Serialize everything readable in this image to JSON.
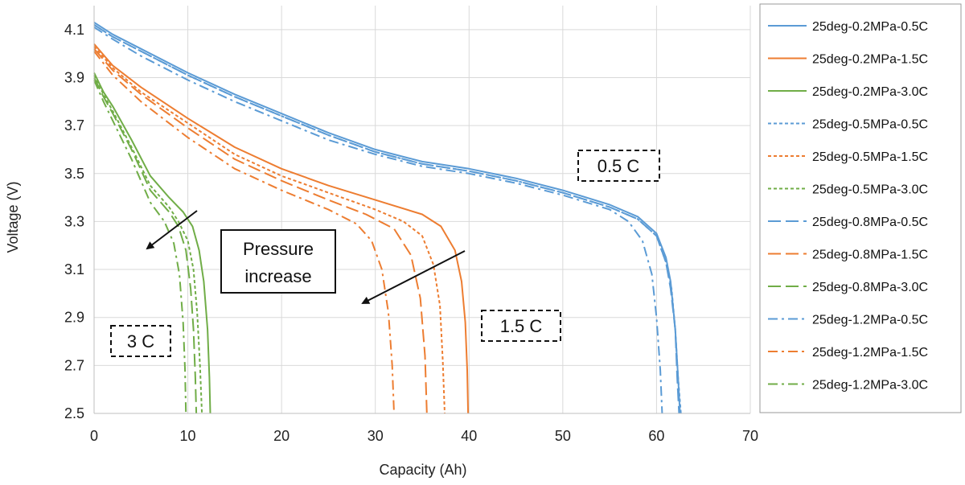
{
  "chart_data": {
    "type": "line",
    "title": "",
    "xlabel": "Capacity (Ah)",
    "ylabel": "Voltage (V)",
    "xlim": [
      0,
      70
    ],
    "ylim": [
      2.5,
      4.2
    ],
    "xticks": [
      0,
      10,
      20,
      30,
      40,
      50,
      60,
      70
    ],
    "yticks": [
      2.5,
      2.7,
      2.9,
      3.1,
      3.3,
      3.5,
      3.7,
      3.9,
      4.1
    ],
    "grid": true,
    "legend_position": "right",
    "colors": {
      "0.5C": "#5b9bd5",
      "1.5C": "#ed7d31",
      "3.0C": "#70ad47"
    },
    "series": [
      {
        "name": "25deg-0.2MPa-0.5C",
        "color": "#5b9bd5",
        "dash": "solid",
        "x": [
          0,
          2,
          5,
          10,
          15,
          20,
          25,
          30,
          35,
          40,
          45,
          50,
          55,
          58,
          60,
          61,
          61.5,
          62,
          62.3,
          62.5
        ],
        "y": [
          4.13,
          4.08,
          4.02,
          3.92,
          3.83,
          3.75,
          3.67,
          3.6,
          3.55,
          3.52,
          3.48,
          3.43,
          3.37,
          3.32,
          3.25,
          3.15,
          3.05,
          2.85,
          2.65,
          2.5
        ]
      },
      {
        "name": "25deg-0.2MPa-1.5C",
        "color": "#ed7d31",
        "dash": "solid",
        "x": [
          0,
          2,
          5,
          10,
          15,
          20,
          25,
          30,
          35,
          37,
          38.5,
          39.2,
          39.6,
          39.8,
          39.9
        ],
        "y": [
          4.04,
          3.95,
          3.86,
          3.73,
          3.61,
          3.52,
          3.45,
          3.39,
          3.33,
          3.28,
          3.18,
          3.05,
          2.88,
          2.68,
          2.5
        ]
      },
      {
        "name": "25deg-0.2MPa-3.0C",
        "color": "#70ad47",
        "dash": "solid",
        "x": [
          0,
          1,
          2,
          4,
          6,
          8,
          9.5,
          10.5,
          11.2,
          11.7,
          12.1,
          12.3,
          12.4
        ],
        "y": [
          3.92,
          3.84,
          3.78,
          3.64,
          3.49,
          3.4,
          3.34,
          3.28,
          3.18,
          3.05,
          2.85,
          2.65,
          2.5
        ]
      },
      {
        "name": "25deg-0.5MPa-0.5C",
        "color": "#5b9bd5",
        "dash": "short",
        "x": [
          0,
          2,
          5,
          10,
          15,
          20,
          25,
          30,
          35,
          40,
          45,
          50,
          55,
          58,
          60,
          61,
          61.6,
          62,
          62.3,
          62.6
        ],
        "y": [
          4.12,
          4.07,
          4.01,
          3.91,
          3.82,
          3.74,
          3.66,
          3.59,
          3.54,
          3.51,
          3.47,
          3.42,
          3.36,
          3.31,
          3.24,
          3.13,
          3.02,
          2.85,
          2.65,
          2.5
        ]
      },
      {
        "name": "25deg-0.5MPa-1.5C",
        "color": "#ed7d31",
        "dash": "short",
        "x": [
          0,
          2,
          5,
          10,
          15,
          20,
          25,
          30,
          33,
          35,
          36.2,
          36.9,
          37.2,
          37.4
        ],
        "y": [
          4.03,
          3.94,
          3.84,
          3.71,
          3.58,
          3.49,
          3.42,
          3.35,
          3.3,
          3.24,
          3.12,
          2.95,
          2.72,
          2.5
        ]
      },
      {
        "name": "25deg-0.5MPa-3.0C",
        "color": "#70ad47",
        "dash": "short",
        "x": [
          0,
          1,
          2,
          4,
          6,
          8,
          9,
          10,
          10.6,
          11.0,
          11.3,
          11.5
        ],
        "y": [
          3.91,
          3.83,
          3.76,
          3.61,
          3.45,
          3.36,
          3.3,
          3.22,
          3.1,
          2.92,
          2.7,
          2.5
        ]
      },
      {
        "name": "25deg-0.8MPa-0.5C",
        "color": "#5b9bd5",
        "dash": "long",
        "x": [
          0,
          2,
          5,
          10,
          15,
          20,
          25,
          30,
          35,
          40,
          45,
          50,
          55,
          58,
          60,
          61,
          61.5,
          62,
          62.2,
          62.4
        ],
        "y": [
          4.12,
          4.07,
          4.01,
          3.91,
          3.82,
          3.74,
          3.66,
          3.59,
          3.54,
          3.51,
          3.47,
          3.42,
          3.36,
          3.31,
          3.24,
          3.13,
          3.02,
          2.85,
          2.65,
          2.5
        ]
      },
      {
        "name": "25deg-0.8MPa-1.5C",
        "color": "#ed7d31",
        "dash": "long",
        "x": [
          0,
          2,
          5,
          10,
          15,
          20,
          25,
          29,
          32,
          33.8,
          34.8,
          35.3,
          35.5
        ],
        "y": [
          4.02,
          3.93,
          3.83,
          3.69,
          3.56,
          3.47,
          3.39,
          3.33,
          3.27,
          3.16,
          2.98,
          2.74,
          2.5
        ]
      },
      {
        "name": "25deg-0.8MPa-3.0C",
        "color": "#70ad47",
        "dash": "long",
        "x": [
          0,
          1,
          2,
          4,
          6,
          8,
          9,
          9.8,
          10.3,
          10.6,
          10.8,
          10.9
        ],
        "y": [
          3.9,
          3.82,
          3.75,
          3.6,
          3.43,
          3.34,
          3.28,
          3.18,
          3.02,
          2.85,
          2.65,
          2.5
        ]
      },
      {
        "name": "25deg-1.2MPa-0.5C",
        "color": "#5b9bd5",
        "dash": "dashdot",
        "x": [
          0,
          2,
          5,
          10,
          15,
          20,
          25,
          30,
          35,
          40,
          45,
          50,
          55,
          57,
          58.5,
          59.5,
          60,
          60.4,
          60.6
        ],
        "y": [
          4.11,
          4.06,
          3.99,
          3.89,
          3.8,
          3.72,
          3.64,
          3.58,
          3.53,
          3.5,
          3.46,
          3.41,
          3.35,
          3.3,
          3.22,
          3.08,
          2.9,
          2.68,
          2.5
        ]
      },
      {
        "name": "25deg-1.2MPa-1.5C",
        "color": "#ed7d31",
        "dash": "dashdot",
        "x": [
          0,
          2,
          5,
          10,
          15,
          20,
          25,
          28,
          29.6,
          30.7,
          31.4,
          31.8,
          32.0
        ],
        "y": [
          4.01,
          3.91,
          3.8,
          3.65,
          3.52,
          3.43,
          3.35,
          3.29,
          3.22,
          3.1,
          2.92,
          2.7,
          2.5
        ]
      },
      {
        "name": "25deg-1.2MPa-3.0C",
        "color": "#70ad47",
        "dash": "dashdot",
        "x": [
          0,
          1,
          2,
          4,
          6,
          7.5,
          8.5,
          9.1,
          9.5,
          9.7,
          9.8
        ],
        "y": [
          3.89,
          3.8,
          3.72,
          3.56,
          3.38,
          3.3,
          3.21,
          3.08,
          2.88,
          2.68,
          2.5
        ]
      }
    ],
    "annotations": [
      {
        "text": "0.5 C",
        "boxed": true,
        "dashed_box": true
      },
      {
        "text": "1.5 C",
        "boxed": true,
        "dashed_box": true
      },
      {
        "text": "3 C",
        "boxed": true,
        "dashed_box": true
      },
      {
        "text_lines": [
          "Pressure",
          "increase"
        ],
        "boxed": true,
        "dashed_box": false
      }
    ]
  }
}
